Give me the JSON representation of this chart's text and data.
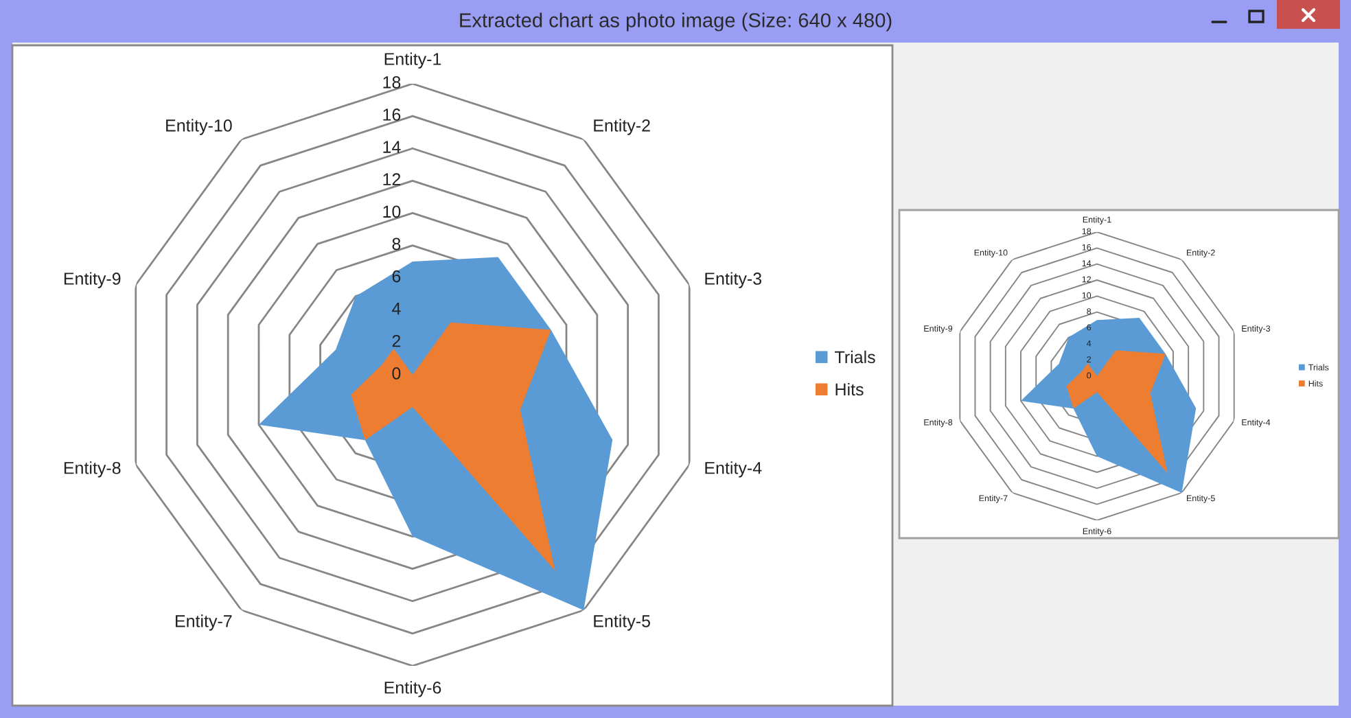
{
  "chart_data": [
    {
      "type": "radar",
      "title": "Extracted chart as photo image (Size: 640 x 480)",
      "categories": [
        "Entity-1",
        "Entity-2",
        "Entity-3",
        "Entity-4",
        "Entity-5",
        "Entity-6",
        "Entity-7",
        "Entity-8",
        "Entity-9",
        "Entity-10"
      ],
      "series": [
        {
          "name": "Trials",
          "type": "area",
          "color": "#5b9bd5",
          "values": [
            7,
            9,
            9,
            13,
            18,
            10,
            5,
            10,
            5,
            6
          ]
        },
        {
          "name": "Hits",
          "type": "area",
          "color": "#ed7d31",
          "values": [
            0,
            4,
            9,
            7,
            15,
            2,
            5,
            4,
            2,
            2
          ]
        }
      ],
      "ylim": [
        0,
        18
      ],
      "yticks": [
        0,
        2,
        4,
        6,
        8,
        10,
        12,
        14,
        16,
        18
      ],
      "grid": true,
      "legend": "right"
    },
    {
      "type": "radar",
      "categories": [
        "Entity-1",
        "Entity-2",
        "Entity-3",
        "Entity-4",
        "Entity-5",
        "Entity-6",
        "Entity-7",
        "Entity-8",
        "Entity-9",
        "Entity-10"
      ],
      "series": [
        {
          "name": "Trials",
          "type": "area",
          "color": "#5b9bd5",
          "values": [
            7,
            9,
            9,
            13,
            18,
            10,
            5,
            10,
            5,
            6
          ]
        },
        {
          "name": "Hits",
          "type": "area",
          "color": "#ed7d31",
          "values": [
            0,
            4,
            9,
            7,
            15,
            2,
            5,
            4,
            2,
            2
          ]
        }
      ],
      "ylim": [
        0,
        18
      ],
      "yticks": [
        0,
        2,
        4,
        6,
        8,
        10,
        12,
        14,
        16,
        18
      ],
      "grid": true,
      "legend": "right"
    }
  ]
}
